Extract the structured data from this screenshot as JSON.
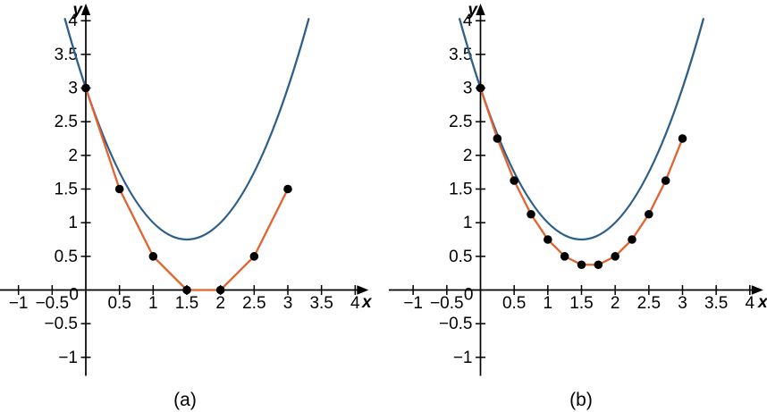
{
  "figure": {
    "background": "#ffffff",
    "axis_color": "#000000",
    "text_color": "#000000"
  },
  "chart_data": [
    {
      "type": "line",
      "caption": "(a)",
      "xlabel": "x",
      "ylabel": "y",
      "xlim": [
        -1.3,
        4.3
      ],
      "ylim": [
        -1.35,
        4.25
      ],
      "xticks": [
        -1,
        -0.5,
        0.5,
        1,
        1.5,
        2,
        2.5,
        3,
        3.5,
        4
      ],
      "yticks": [
        -1,
        -0.5,
        0.5,
        1,
        1.5,
        2,
        2.5,
        3,
        3.5,
        4
      ],
      "origin_label": "0",
      "grid": false,
      "legend": false,
      "series": [
        {
          "name": "exact solution curve",
          "kind": "quadratic-curve",
          "color": "#2e5f8a",
          "quadratic": {
            "a": 1,
            "b": -3,
            "c": 3
          },
          "x_range": [
            -0.31,
            3.31
          ]
        },
        {
          "name": "piecewise linear approximation, step 0.5",
          "kind": "polyline",
          "color": "#e06330",
          "marker_color": "#000000",
          "points": [
            [
              0,
              3
            ],
            [
              0.5,
              1.5
            ],
            [
              1,
              0.5
            ],
            [
              1.5,
              0
            ],
            [
              2,
              0
            ],
            [
              2.5,
              0.5
            ],
            [
              3,
              1.5
            ]
          ]
        }
      ]
    },
    {
      "type": "line",
      "caption": "(b)",
      "xlabel": "x",
      "ylabel": "y",
      "xlim": [
        -1.3,
        4.3
      ],
      "ylim": [
        -1.35,
        4.25
      ],
      "xticks": [
        -1,
        -0.5,
        0.5,
        1,
        1.5,
        2,
        2.5,
        3,
        3.5,
        4
      ],
      "yticks": [
        -1,
        -0.5,
        0.5,
        1,
        1.5,
        2,
        2.5,
        3,
        3.5,
        4
      ],
      "origin_label": "0",
      "grid": false,
      "legend": false,
      "series": [
        {
          "name": "exact solution curve",
          "kind": "quadratic-curve",
          "color": "#2e5f8a",
          "quadratic": {
            "a": 1,
            "b": -3,
            "c": 3
          },
          "x_range": [
            -0.31,
            3.31
          ]
        },
        {
          "name": "piecewise linear approximation, step 0.25",
          "kind": "polyline",
          "color": "#e06330",
          "marker_color": "#000000",
          "points": [
            [
              0,
              3
            ],
            [
              0.25,
              2.25
            ],
            [
              0.5,
              1.625
            ],
            [
              0.75,
              1.125
            ],
            [
              1,
              0.75
            ],
            [
              1.25,
              0.5
            ],
            [
              1.5,
              0.375
            ],
            [
              1.75,
              0.375
            ],
            [
              2,
              0.5
            ],
            [
              2.25,
              0.75
            ],
            [
              2.5,
              1.125
            ],
            [
              2.75,
              1.625
            ],
            [
              3,
              2.25
            ]
          ]
        }
      ]
    }
  ]
}
